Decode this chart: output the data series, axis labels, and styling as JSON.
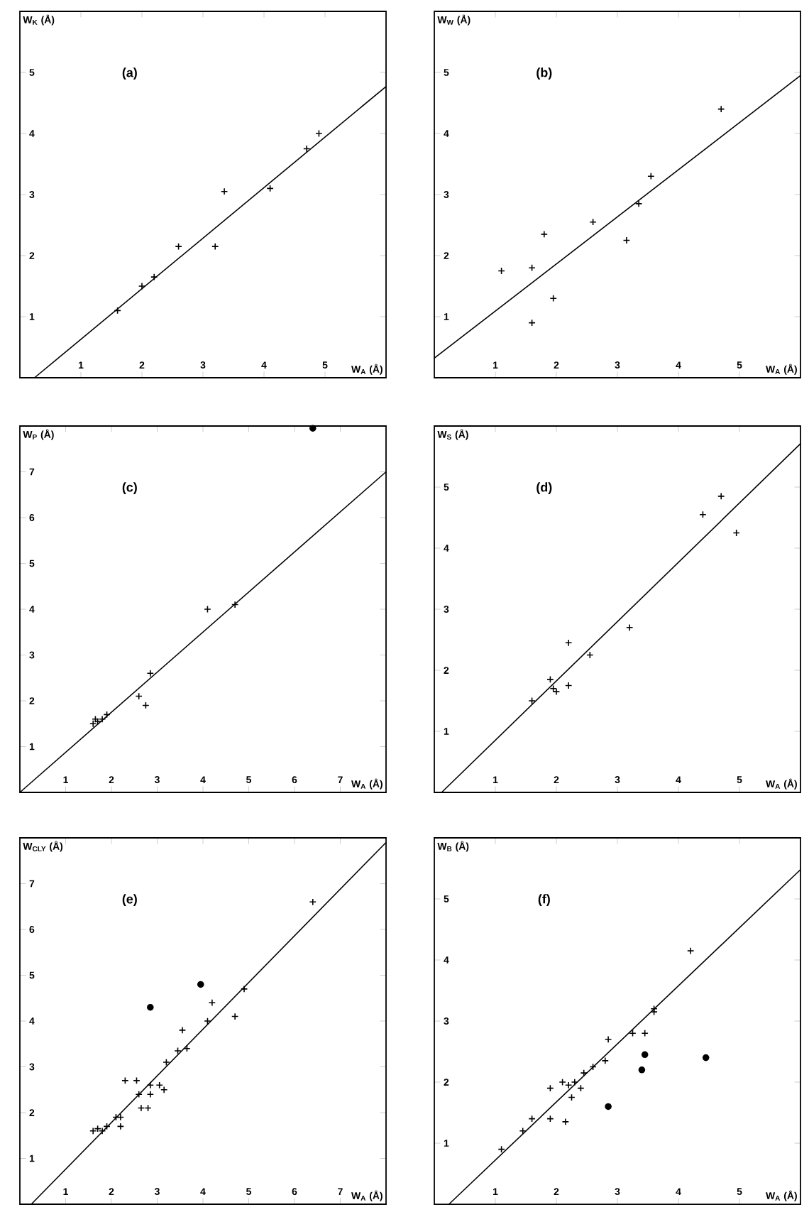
{
  "chart_data": [
    {
      "type": "scatter",
      "xlabel": "W$_{A}$ (Å)",
      "ylabel": "W$_{K}$ (Å)",
      "annotations": [
        "(a)"
      ],
      "xlim": [
        0,
        6
      ],
      "ylim": [
        0,
        6
      ],
      "xticks": [
        1,
        2,
        3,
        4,
        5
      ],
      "yticks": [
        1,
        2,
        3,
        4,
        5
      ],
      "series": [
        {
          "type": "scatter",
          "marker": "cross",
          "color": "#000000",
          "x": [
            1.6,
            2.0,
            2.2,
            2.6,
            3.2,
            3.35,
            4.1,
            4.7,
            4.9
          ],
          "values": [
            1.1,
            1.5,
            1.65,
            2.15,
            2.15,
            3.05,
            3.1,
            3.75,
            4.0
          ]
        },
        {
          "type": "line",
          "marker": "none",
          "color": "#000000",
          "x": [
            0.24,
            6
          ],
          "values": [
            0,
            4.77
          ]
        }
      ]
    },
    {
      "type": "scatter",
      "xlabel": "W$_{A}$ (Å)",
      "ylabel": "W$_{W}$ (Å)",
      "annotations": [
        "(b)"
      ],
      "xlim": [
        0,
        6
      ],
      "ylim": [
        0,
        6
      ],
      "xticks": [
        1,
        2,
        3,
        4,
        5
      ],
      "yticks": [
        1,
        2,
        3,
        4,
        5
      ],
      "series": [
        {
          "type": "scatter",
          "marker": "cross",
          "color": "#000000",
          "x": [
            1.1,
            1.6,
            1.6,
            1.8,
            1.95,
            2.6,
            3.15,
            3.35,
            3.55,
            4.7
          ],
          "values": [
            1.75,
            1.8,
            0.9,
            2.35,
            1.3,
            2.55,
            2.25,
            2.85,
            3.3,
            4.4
          ]
        },
        {
          "type": "line",
          "marker": "none",
          "color": "#000000",
          "x": [
            0,
            6
          ],
          "values": [
            0.32,
            4.95
          ]
        }
      ]
    },
    {
      "type": "scatter",
      "xlabel": "W$_{A}$ (Å)",
      "ylabel": "W$_{P}$ (Å)",
      "annotations": [
        "(c)"
      ],
      "xlim": [
        0,
        8
      ],
      "ylim": [
        0,
        8
      ],
      "xticks": [
        1,
        2,
        3,
        4,
        5,
        6,
        7
      ],
      "yticks": [
        1,
        2,
        3,
        4,
        5,
        6,
        7
      ],
      "series": [
        {
          "type": "scatter",
          "marker": "cross",
          "color": "#000000",
          "x": [
            1.6,
            1.65,
            1.7,
            1.8,
            1.9,
            2.6,
            2.75,
            2.85,
            4.1,
            4.7
          ],
          "values": [
            1.5,
            1.6,
            1.55,
            1.6,
            1.7,
            2.1,
            1.9,
            2.6,
            4.0,
            4.1
          ]
        },
        {
          "type": "scatter",
          "marker": "circle",
          "color": "#000000",
          "x": [
            6.4
          ],
          "values": [
            7.95
          ]
        },
        {
          "type": "line",
          "marker": "none",
          "color": "#000000",
          "x": [
            0,
            8
          ],
          "values": [
            0,
            7.0
          ]
        }
      ]
    },
    {
      "type": "scatter",
      "xlabel": "W$_{A}$ (Å)",
      "ylabel": "W$_{S}$ (Å)",
      "annotations": [
        "(d)"
      ],
      "xlim": [
        0,
        6
      ],
      "ylim": [
        0,
        6
      ],
      "xticks": [
        1,
        2,
        3,
        4,
        5
      ],
      "yticks": [
        1,
        2,
        3,
        4,
        5
      ],
      "series": [
        {
          "type": "scatter",
          "marker": "cross",
          "color": "#000000",
          "x": [
            1.6,
            1.9,
            1.95,
            2.0,
            2.2,
            2.2,
            2.55,
            3.2,
            4.4,
            4.7,
            4.95
          ],
          "values": [
            1.5,
            1.85,
            1.7,
            1.65,
            2.45,
            1.75,
            2.25,
            2.7,
            4.55,
            4.85,
            4.25
          ]
        },
        {
          "type": "line",
          "marker": "none",
          "color": "#000000",
          "x": [
            0.12,
            6
          ],
          "values": [
            0,
            5.71
          ]
        }
      ]
    },
    {
      "type": "scatter",
      "xlabel": "W$_{A}$ (Å)",
      "ylabel": "W$_{CLY}$ (Å)",
      "annotations": [
        "(e)"
      ],
      "xlim": [
        0,
        8
      ],
      "ylim": [
        0,
        8
      ],
      "xticks": [
        1,
        2,
        3,
        4,
        5,
        6,
        7
      ],
      "yticks": [
        1,
        2,
        3,
        4,
        5,
        6,
        7
      ],
      "series": [
        {
          "type": "scatter",
          "marker": "cross",
          "color": "#000000",
          "x": [
            1.6,
            1.7,
            1.8,
            1.9,
            2.1,
            2.2,
            2.2,
            2.3,
            2.55,
            2.6,
            2.65,
            2.8,
            2.85,
            2.85,
            3.05,
            3.15,
            3.2,
            3.45,
            3.55,
            3.65,
            4.1,
            4.2,
            4.7,
            4.9,
            6.4
          ],
          "values": [
            1.6,
            1.65,
            1.6,
            1.7,
            1.9,
            1.9,
            1.7,
            2.7,
            2.7,
            2.4,
            2.1,
            2.1,
            2.6,
            2.4,
            2.6,
            2.5,
            3.1,
            3.35,
            3.8,
            3.4,
            4.0,
            4.4,
            4.1,
            4.7,
            6.6
          ]
        },
        {
          "type": "scatter",
          "marker": "circle",
          "color": "#000000",
          "x": [
            2.85,
            3.95
          ],
          "values": [
            4.3,
            4.8
          ]
        },
        {
          "type": "line",
          "marker": "none",
          "color": "#000000",
          "x": [
            0.25,
            8
          ],
          "values": [
            0,
            7.9
          ]
        }
      ]
    },
    {
      "type": "scatter",
      "xlabel": "W$_{A}$ (Å)",
      "ylabel": "W$_{B}$ (Å)",
      "annotations": [
        "(f)"
      ],
      "xlim": [
        0,
        6
      ],
      "ylim": [
        0,
        6
      ],
      "xticks": [
        1,
        2,
        3,
        4,
        5
      ],
      "yticks": [
        1,
        2,
        3,
        4,
        5
      ],
      "series": [
        {
          "type": "scatter",
          "marker": "cross",
          "color": "#000000",
          "x": [
            1.1,
            1.45,
            1.6,
            1.9,
            1.9,
            2.1,
            2.15,
            2.2,
            2.25,
            2.3,
            2.4,
            2.45,
            2.6,
            2.8,
            2.85,
            3.25,
            3.45,
            3.6,
            3.6,
            4.2
          ],
          "values": [
            0.9,
            1.2,
            1.4,
            1.4,
            1.9,
            2.0,
            1.35,
            1.95,
            1.75,
            2.0,
            1.9,
            2.15,
            2.25,
            2.35,
            2.7,
            2.8,
            2.8,
            3.15,
            3.2,
            4.15
          ]
        },
        {
          "type": "scatter",
          "marker": "circle",
          "color": "#000000",
          "x": [
            2.85,
            3.4,
            3.45,
            4.45
          ],
          "values": [
            1.6,
            2.2,
            2.45,
            2.4
          ]
        },
        {
          "type": "line",
          "marker": "none",
          "color": "#000000",
          "x": [
            0.24,
            6
          ],
          "values": [
            0,
            5.48
          ]
        }
      ]
    }
  ]
}
